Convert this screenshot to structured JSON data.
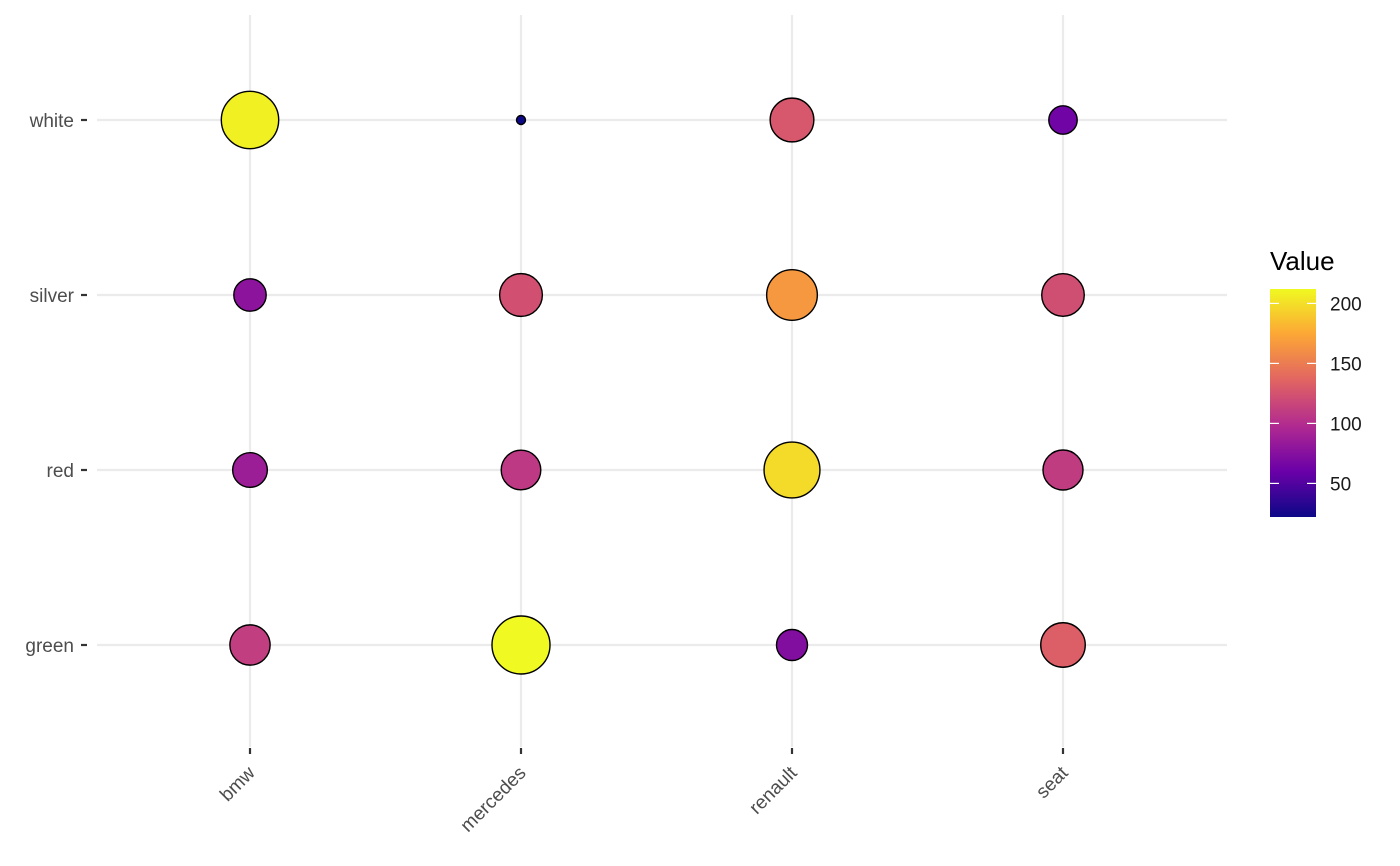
{
  "chart_data": {
    "type": "scatter",
    "subtype": "bubble",
    "title": "",
    "xlabel": "",
    "ylabel": "",
    "x_categories": [
      "bmw",
      "mercedes",
      "renault",
      "seat"
    ],
    "y_categories": [
      "green",
      "red",
      "silver",
      "white"
    ],
    "points": [
      {
        "x": "bmw",
        "y": "white",
        "value": 208
      },
      {
        "x": "mercedes",
        "y": "white",
        "value": 22
      },
      {
        "x": "renault",
        "y": "white",
        "value": 128
      },
      {
        "x": "seat",
        "y": "white",
        "value": 64
      },
      {
        "x": "bmw",
        "y": "silver",
        "value": 78
      },
      {
        "x": "mercedes",
        "y": "silver",
        "value": 123
      },
      {
        "x": "renault",
        "y": "silver",
        "value": 166
      },
      {
        "x": "seat",
        "y": "silver",
        "value": 122
      },
      {
        "x": "bmw",
        "y": "red",
        "value": 87
      },
      {
        "x": "mercedes",
        "y": "red",
        "value": 108
      },
      {
        "x": "renault",
        "y": "red",
        "value": 198
      },
      {
        "x": "seat",
        "y": "red",
        "value": 110
      },
      {
        "x": "bmw",
        "y": "green",
        "value": 111
      },
      {
        "x": "mercedes",
        "y": "green",
        "value": 212
      },
      {
        "x": "renault",
        "y": "green",
        "value": 73
      },
      {
        "x": "seat",
        "y": "green",
        "value": 132
      }
    ],
    "size_range": [
      22,
      212
    ],
    "legend": {
      "title": "Value",
      "placement": "right",
      "min": 22,
      "max": 212,
      "breaks": [
        50,
        100,
        150,
        200
      ],
      "break_labels": [
        "50",
        "100",
        "150",
        "200"
      ]
    },
    "colormap_stops": [
      "#0d0887",
      "#6a00a8",
      "#b12a90",
      "#e16462",
      "#fca636",
      "#f0f921"
    ],
    "grid": true,
    "gridline_color": "#ebebeb",
    "point_outline_color": "#000000"
  }
}
